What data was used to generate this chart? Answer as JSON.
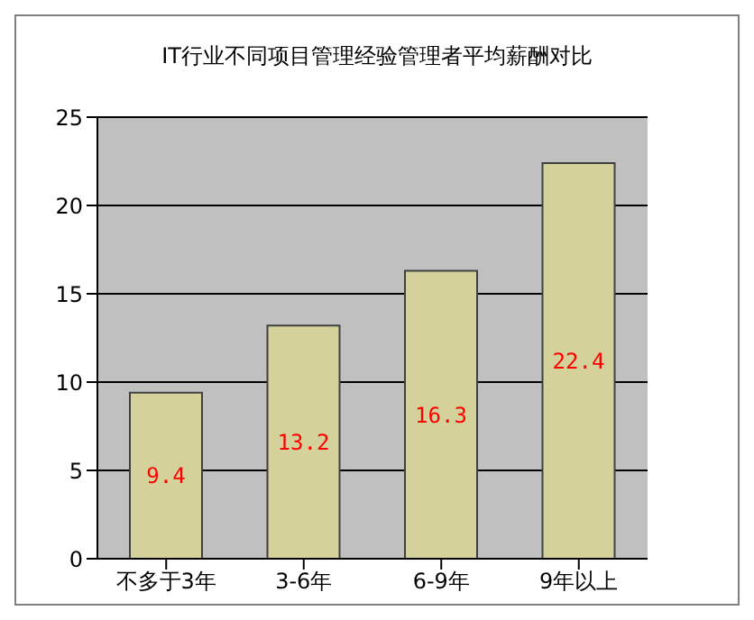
{
  "chart_data": {
    "type": "bar",
    "title": "IT行业不同项目管理经验管理者平均薪酬对比",
    "categories": [
      "不多于3年",
      "3-6年",
      "6-9年",
      "9年以上"
    ],
    "values": [
      9.4,
      13.2,
      16.3,
      22.4
    ],
    "color": "#d4d29a",
    "ylim": [
      0,
      25
    ],
    "yticks": [
      0,
      5,
      10,
      15,
      20,
      25
    ],
    "grid": "y",
    "data_labels": true
  }
}
